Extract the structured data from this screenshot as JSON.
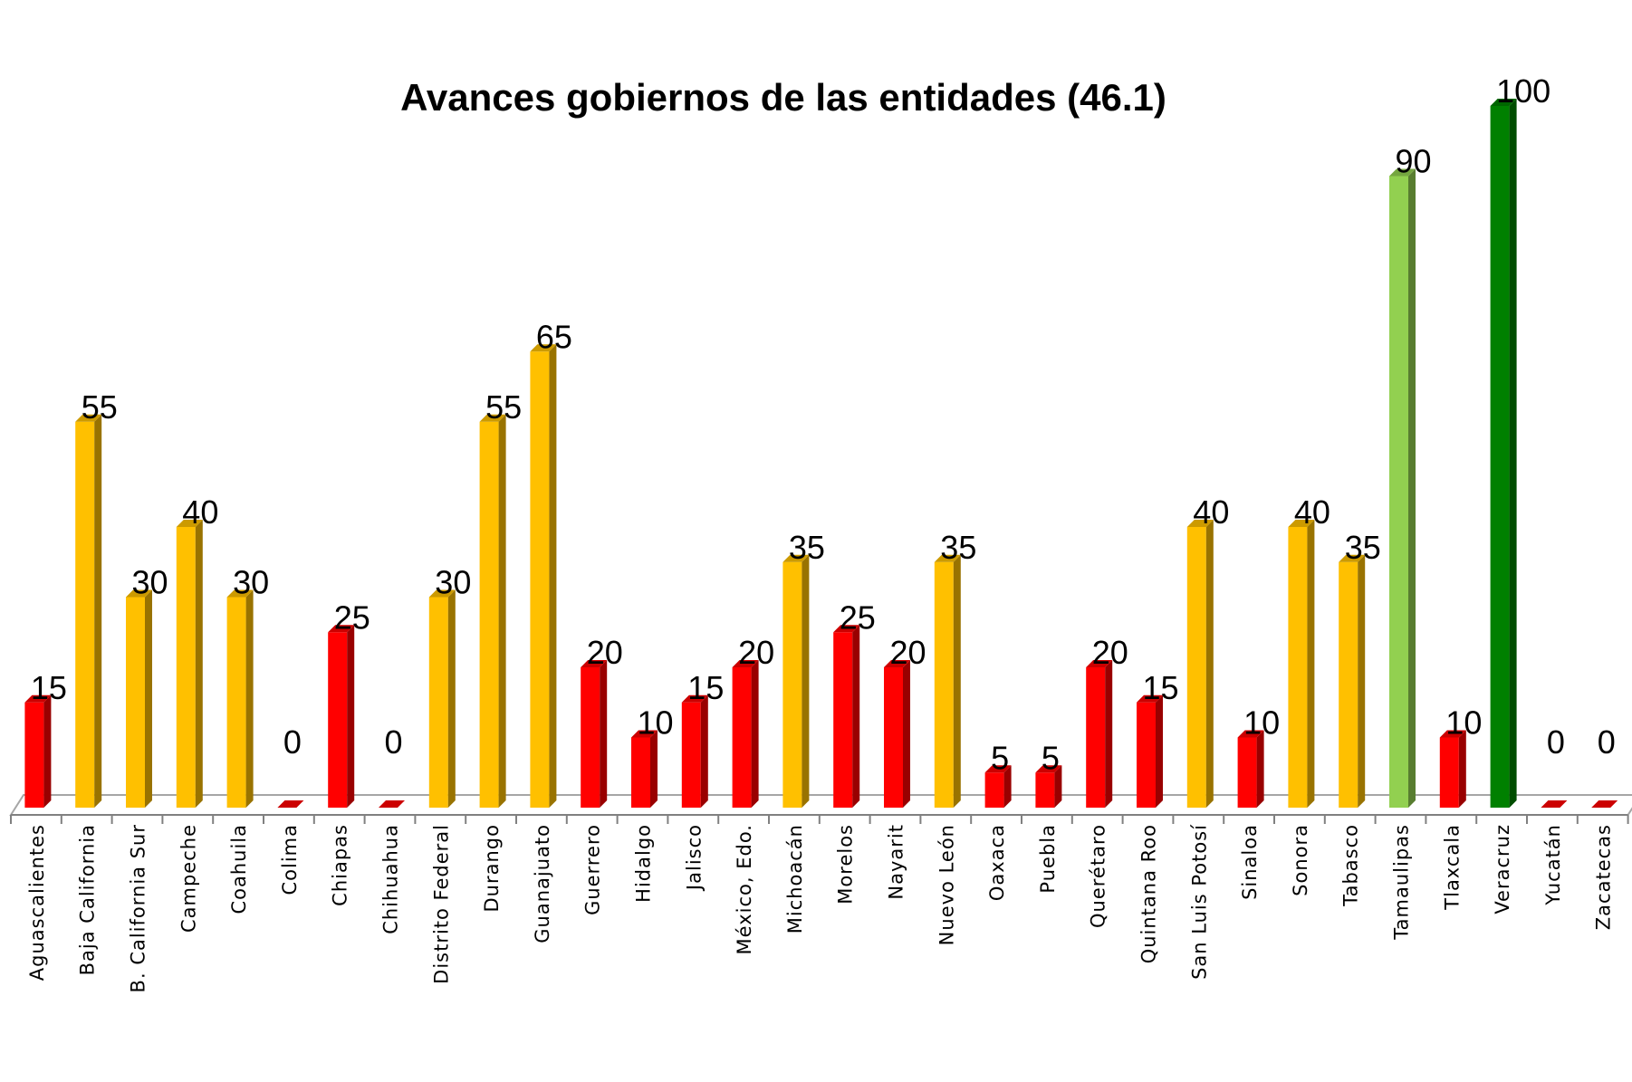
{
  "chart_data": {
    "type": "bar",
    "title": "Avances gobiernos de las entidades (46.1)",
    "xlabel": "",
    "ylabel": "",
    "ylim": [
      0,
      100
    ],
    "grid": false,
    "legend": "none",
    "categories": [
      "Aguascalientes",
      "Baja California",
      "B. California Sur",
      "Campeche",
      "Coahuila",
      "Colima",
      "Chiapas",
      "Chihuahua",
      "Distrito Federal",
      "Durango",
      "Guanajuato",
      "Guerrero",
      "Hidalgo",
      "Jalisco",
      "México, Edo.",
      "Michoacán",
      "Morelos",
      "Nayarit",
      "Nuevo León",
      "Oaxaca",
      "Puebla",
      "Querétaro",
      "Quintana Roo",
      "San Luis Potosí",
      "Sinaloa",
      "Sonora",
      "Tabasco",
      "Tamaulipas",
      "Tlaxcala",
      "Veracruz",
      "Yucatán",
      "Zacatecas"
    ],
    "values": [
      15,
      55,
      30,
      40,
      30,
      0,
      25,
      0,
      30,
      55,
      65,
      20,
      10,
      15,
      20,
      35,
      25,
      20,
      35,
      5,
      5,
      20,
      15,
      40,
      10,
      40,
      35,
      90,
      10,
      100,
      0,
      0
    ],
    "colors": {
      "red": "#ff0000",
      "yellow": "#ffc000",
      "light_green": "#92d050",
      "dark_green": "#008000"
    },
    "bar_color_keys": [
      "red",
      "yellow",
      "yellow",
      "yellow",
      "yellow",
      "red",
      "red",
      "red",
      "yellow",
      "yellow",
      "yellow",
      "red",
      "red",
      "red",
      "red",
      "yellow",
      "red",
      "red",
      "yellow",
      "red",
      "red",
      "red",
      "red",
      "yellow",
      "red",
      "yellow",
      "yellow",
      "light_green",
      "red",
      "dark_green",
      "red",
      "red"
    ]
  }
}
